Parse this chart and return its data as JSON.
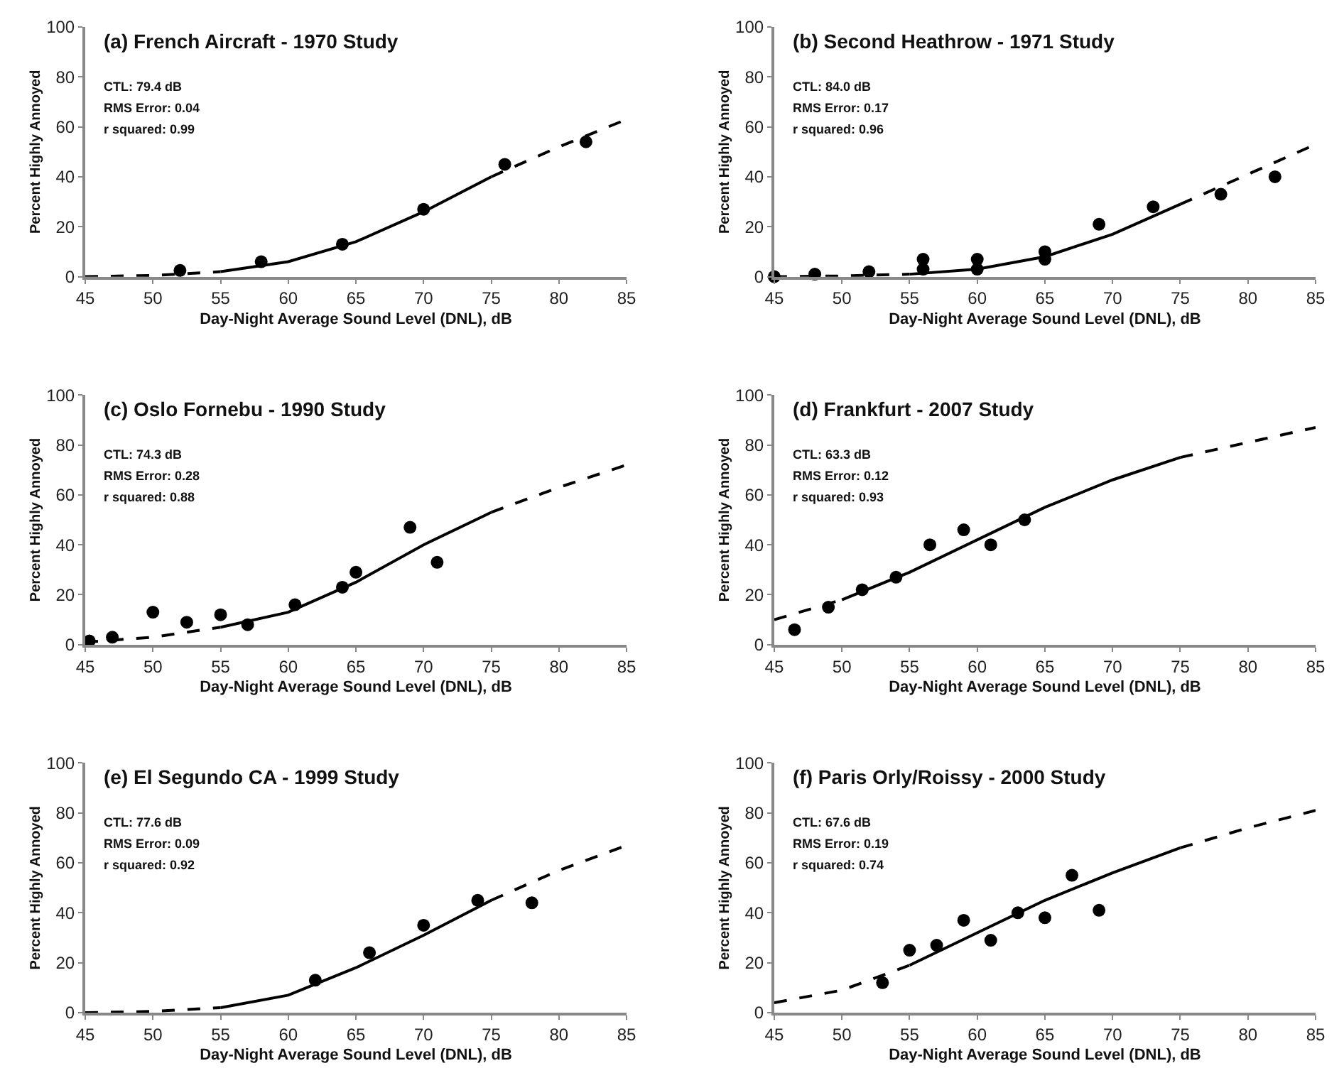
{
  "chart_data": [
    {
      "type": "scatter",
      "title": "(a) French Aircraft - 1970 Study",
      "xlabel": "Day-Night Average Sound Level (DNL), dB",
      "ylabel": "Percent Highly Annoyed",
      "xlim": [
        45,
        85
      ],
      "ylim": [
        0,
        100
      ],
      "xticks": [
        45,
        50,
        55,
        60,
        65,
        70,
        75,
        80,
        85
      ],
      "yticks": [
        0,
        20,
        40,
        60,
        80,
        100
      ],
      "annotations": [
        "CTL: 79.4 dB",
        "RMS Error: 0.04",
        "r squared: 0.99"
      ],
      "series": [
        {
          "type": "line",
          "color": "#000000",
          "line_style": "dashed",
          "x": [
            45,
            50,
            55
          ],
          "values": [
            0,
            0.5,
            2
          ]
        },
        {
          "type": "line",
          "color": "#000000",
          "line_style": "solid",
          "x": [
            55,
            60,
            65,
            70,
            75
          ],
          "values": [
            2,
            6,
            14,
            26,
            40
          ]
        },
        {
          "type": "line",
          "color": "#000000",
          "line_style": "dashed",
          "x": [
            75,
            80,
            85
          ],
          "values": [
            40,
            52,
            63
          ]
        },
        {
          "color": "#000000",
          "marker": "circle",
          "x": [
            52,
            58,
            64,
            70,
            76,
            82
          ],
          "values": [
            2.5,
            6,
            13,
            27,
            45,
            54
          ]
        }
      ]
    },
    {
      "type": "scatter",
      "title": "(b) Second Heathrow - 1971 Study",
      "xlabel": "Day-Night Average Sound Level (DNL), dB",
      "ylabel": "Percent Highly Annoyed",
      "xlim": [
        45,
        85
      ],
      "ylim": [
        0,
        100
      ],
      "xticks": [
        45,
        50,
        55,
        60,
        65,
        70,
        75,
        80,
        85
      ],
      "yticks": [
        0,
        20,
        40,
        60,
        80,
        100
      ],
      "annotations": [
        "CTL: 84.0 dB",
        "RMS Error: 0.17",
        "r squared: 0.96"
      ],
      "series": [
        {
          "type": "line",
          "color": "#000000",
          "line_style": "dashed",
          "x": [
            45,
            50,
            55
          ],
          "values": [
            0,
            0.3,
            1
          ]
        },
        {
          "type": "line",
          "color": "#000000",
          "line_style": "solid",
          "x": [
            55,
            60,
            65,
            70,
            75
          ],
          "values": [
            1,
            3,
            8,
            17,
            29
          ]
        },
        {
          "type": "line",
          "color": "#000000",
          "line_style": "dashed",
          "x": [
            75,
            80,
            85
          ],
          "values": [
            29,
            41,
            53
          ]
        },
        {
          "color": "#000000",
          "marker": "circle",
          "x": [
            45,
            48,
            52,
            56,
            56,
            60,
            60,
            65,
            65,
            69,
            73,
            78,
            82
          ],
          "values": [
            0,
            1,
            2,
            7,
            3,
            7,
            3,
            10,
            7,
            21,
            28,
            33,
            40
          ]
        }
      ]
    },
    {
      "type": "scatter",
      "title": "(c) Oslo Fornebu - 1990 Study",
      "xlabel": "Day-Night Average Sound Level (DNL), dB",
      "ylabel": "Percent Highly Annoyed",
      "xlim": [
        45,
        85
      ],
      "ylim": [
        0,
        100
      ],
      "xticks": [
        45,
        50,
        55,
        60,
        65,
        70,
        75,
        80,
        85
      ],
      "yticks": [
        0,
        20,
        40,
        60,
        80,
        100
      ],
      "annotations": [
        "CTL: 74.3 dB",
        "RMS Error: 0.28",
        "r squared: 0.88"
      ],
      "series": [
        {
          "type": "line",
          "color": "#000000",
          "line_style": "dashed",
          "x": [
            45,
            50,
            55
          ],
          "values": [
            1,
            3,
            7
          ]
        },
        {
          "type": "line",
          "color": "#000000",
          "line_style": "solid",
          "x": [
            55,
            60,
            65,
            70,
            75
          ],
          "values": [
            7,
            13,
            25,
            40,
            53
          ]
        },
        {
          "type": "line",
          "color": "#000000",
          "line_style": "dashed",
          "x": [
            75,
            80,
            85
          ],
          "values": [
            53,
            63,
            72
          ]
        },
        {
          "color": "#000000",
          "marker": "circle",
          "x": [
            45.3,
            47,
            50,
            52.5,
            55,
            57,
            60.5,
            64,
            65,
            69,
            71
          ],
          "values": [
            1.5,
            3,
            13,
            9,
            12,
            8,
            16,
            23,
            29,
            47,
            33
          ]
        }
      ]
    },
    {
      "type": "scatter",
      "title": "(d) Frankfurt - 2007 Study",
      "xlabel": "Day-Night Average Sound Level (DNL), dB",
      "ylabel": "Percent Highly Annoyed",
      "xlim": [
        45,
        85
      ],
      "ylim": [
        0,
        100
      ],
      "xticks": [
        45,
        50,
        55,
        60,
        65,
        70,
        75,
        80,
        85
      ],
      "yticks": [
        0,
        20,
        40,
        60,
        80,
        100
      ],
      "annotations": [
        "CTL: 63.3 dB",
        "RMS Error: 0.12",
        "r squared: 0.93"
      ],
      "series": [
        {
          "type": "line",
          "color": "#000000",
          "line_style": "dashed",
          "x": [
            45,
            50
          ],
          "values": [
            10,
            18
          ]
        },
        {
          "type": "line",
          "color": "#000000",
          "line_style": "solid",
          "x": [
            50,
            55,
            60,
            65,
            70,
            75
          ],
          "values": [
            18,
            29,
            42,
            55,
            66,
            75
          ]
        },
        {
          "type": "line",
          "color": "#000000",
          "line_style": "dashed",
          "x": [
            75,
            80,
            85
          ],
          "values": [
            75,
            81,
            87
          ]
        },
        {
          "color": "#000000",
          "marker": "circle",
          "x": [
            46.5,
            49,
            51.5,
            54,
            56.5,
            59,
            61,
            63.5
          ],
          "values": [
            6,
            15,
            22,
            27,
            40,
            46,
            40,
            50
          ]
        }
      ]
    },
    {
      "type": "scatter",
      "title": "(e) El Segundo CA - 1999 Study",
      "xlabel": "Day-Night Average Sound Level (DNL), dB",
      "ylabel": "Percent Highly Annoyed",
      "xlim": [
        45,
        85
      ],
      "ylim": [
        0,
        100
      ],
      "xticks": [
        45,
        50,
        55,
        60,
        65,
        70,
        75,
        80,
        85
      ],
      "yticks": [
        0,
        20,
        40,
        60,
        80,
        100
      ],
      "annotations": [
        "CTL: 77.6 dB",
        "RMS Error: 0.09",
        "r squared: 0.92"
      ],
      "series": [
        {
          "type": "line",
          "color": "#000000",
          "line_style": "dashed",
          "x": [
            45,
            50,
            55
          ],
          "values": [
            0,
            0.5,
            2
          ]
        },
        {
          "type": "line",
          "color": "#000000",
          "line_style": "solid",
          "x": [
            55,
            60,
            65,
            70,
            75
          ],
          "values": [
            2,
            7,
            18,
            31,
            45
          ]
        },
        {
          "type": "line",
          "color": "#000000",
          "line_style": "dashed",
          "x": [
            75,
            80,
            85
          ],
          "values": [
            45,
            57,
            67
          ]
        },
        {
          "color": "#000000",
          "marker": "circle",
          "x": [
            62,
            66,
            70,
            74,
            78
          ],
          "values": [
            13,
            24,
            35,
            45,
            44
          ]
        }
      ]
    },
    {
      "type": "scatter",
      "title": "(f) Paris Orly/Roissy - 2000 Study",
      "xlabel": "Day-Night Average Sound Level (DNL), dB",
      "ylabel": "Percent Highly Annoyed",
      "xlim": [
        45,
        85
      ],
      "ylim": [
        0,
        100
      ],
      "xticks": [
        45,
        50,
        55,
        60,
        65,
        70,
        75,
        80,
        85
      ],
      "yticks": [
        0,
        20,
        40,
        60,
        80,
        100
      ],
      "annotations": [
        "CTL: 67.6 dB",
        "RMS Error: 0.19",
        "r squared: 0.74"
      ],
      "series": [
        {
          "type": "line",
          "color": "#000000",
          "line_style": "dashed",
          "x": [
            45,
            50,
            55
          ],
          "values": [
            4,
            9,
            19
          ]
        },
        {
          "type": "line",
          "color": "#000000",
          "line_style": "solid",
          "x": [
            55,
            60,
            65,
            70,
            75
          ],
          "values": [
            19,
            32,
            45,
            56,
            66
          ]
        },
        {
          "type": "line",
          "color": "#000000",
          "line_style": "dashed",
          "x": [
            75,
            80,
            85
          ],
          "values": [
            66,
            74,
            81
          ]
        },
        {
          "color": "#000000",
          "marker": "circle",
          "x": [
            53,
            55,
            57,
            59,
            61,
            63,
            65,
            67,
            69
          ],
          "values": [
            12,
            25,
            27,
            37,
            29,
            40,
            38,
            55,
            41
          ]
        }
      ]
    }
  ]
}
